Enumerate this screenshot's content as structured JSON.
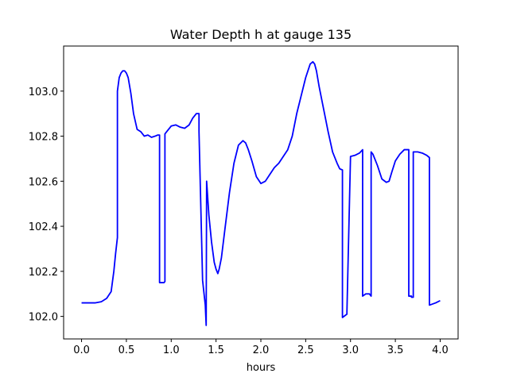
{
  "chart_data": {
    "type": "line",
    "title": "Water Depth h at gauge 135",
    "xlabel": "hours",
    "ylabel": "",
    "xlim": [
      -0.2,
      4.2
    ],
    "ylim": [
      101.9,
      103.2
    ],
    "xticks": [
      0.0,
      0.5,
      1.0,
      1.5,
      2.0,
      2.5,
      3.0,
      3.5,
      4.0
    ],
    "xtick_labels": [
      "0.0",
      "0.5",
      "1.0",
      "1.5",
      "2.0",
      "2.5",
      "3.0",
      "3.5",
      "4.0"
    ],
    "yticks": [
      102.0,
      102.2,
      102.4,
      102.6,
      102.8,
      103.0
    ],
    "ytick_labels": [
      "102.0",
      "102.2",
      "102.4",
      "102.6",
      "102.8",
      "103.0"
    ],
    "grid": false,
    "series": [
      {
        "color": "#0000ff",
        "x": [
          0.0,
          0.15,
          0.22,
          0.28,
          0.33,
          0.36,
          0.38,
          0.4,
          0.4,
          0.42,
          0.44,
          0.46,
          0.48,
          0.5,
          0.52,
          0.55,
          0.58,
          0.62,
          0.66,
          0.7,
          0.74,
          0.78,
          0.82,
          0.85,
          0.87,
          0.87,
          0.92,
          0.93,
          0.93,
          0.95,
          1.0,
          1.05,
          1.1,
          1.15,
          1.2,
          1.24,
          1.28,
          1.31,
          1.31,
          1.35,
          1.38,
          1.39,
          1.395,
          1.42,
          1.45,
          1.48,
          1.5,
          1.52,
          1.535,
          1.56,
          1.6,
          1.65,
          1.7,
          1.75,
          1.8,
          1.83,
          1.86,
          1.9,
          1.95,
          2.0,
          2.05,
          2.1,
          2.15,
          2.2,
          2.25,
          2.3,
          2.35,
          2.4,
          2.45,
          2.5,
          2.55,
          2.58,
          2.6,
          2.62,
          2.65,
          2.7,
          2.75,
          2.8,
          2.85,
          2.88,
          2.91,
          2.91,
          2.96,
          2.96,
          3.0,
          3.05,
          3.1,
          3.135,
          3.135,
          3.17,
          3.19,
          3.21,
          3.23,
          3.23,
          3.25,
          3.3,
          3.35,
          3.4,
          3.43,
          3.46,
          3.5,
          3.55,
          3.6,
          3.64,
          3.65,
          3.65,
          3.68,
          3.68,
          3.7,
          3.7,
          3.75,
          3.8,
          3.85,
          3.88,
          3.88,
          3.95,
          4.0
        ],
        "y": [
          102.06,
          102.06,
          102.065,
          102.08,
          102.11,
          102.2,
          102.28,
          102.35,
          103.0,
          103.06,
          103.08,
          103.09,
          103.09,
          103.08,
          103.06,
          102.99,
          102.9,
          102.83,
          102.82,
          102.8,
          102.805,
          102.795,
          102.8,
          102.805,
          102.805,
          102.15,
          102.15,
          102.155,
          102.81,
          102.82,
          102.845,
          102.85,
          102.84,
          102.835,
          102.85,
          102.88,
          102.9,
          102.9,
          102.82,
          102.16,
          102.05,
          101.96,
          102.6,
          102.45,
          102.33,
          102.24,
          102.21,
          102.19,
          102.21,
          102.26,
          102.39,
          102.55,
          102.68,
          102.76,
          102.78,
          102.77,
          102.74,
          102.69,
          102.62,
          102.59,
          102.6,
          102.63,
          102.66,
          102.68,
          102.71,
          102.74,
          102.8,
          102.9,
          102.98,
          103.06,
          103.12,
          103.13,
          103.12,
          103.09,
          103.02,
          102.92,
          102.82,
          102.73,
          102.68,
          102.655,
          102.65,
          101.995,
          102.01,
          102.02,
          102.71,
          102.715,
          102.725,
          102.74,
          102.09,
          102.1,
          102.1,
          102.1,
          102.09,
          102.73,
          102.72,
          102.67,
          102.61,
          102.595,
          102.6,
          102.64,
          102.69,
          102.72,
          102.74,
          102.74,
          102.74,
          102.09,
          102.09,
          102.085,
          102.085,
          102.73,
          102.73,
          102.725,
          102.715,
          102.705,
          102.05,
          102.06,
          102.07
        ]
      }
    ]
  }
}
